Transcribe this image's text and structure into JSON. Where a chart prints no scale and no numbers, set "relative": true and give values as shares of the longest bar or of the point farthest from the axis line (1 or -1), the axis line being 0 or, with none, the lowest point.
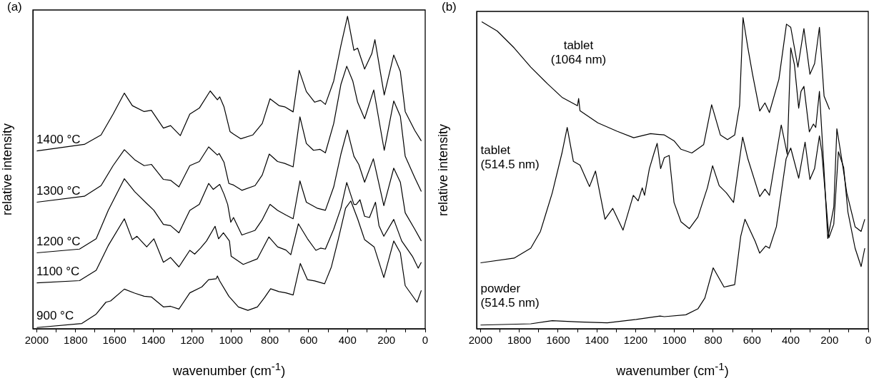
{
  "chart_data": [
    {
      "type": "line",
      "title": "(a)",
      "xlabel": "wavenumber (cm$^{-1}$)",
      "ylabel": "relative intensity",
      "relative": true,
      "marker": "none",
      "legend": false,
      "xlim": [
        2020,
        0
      ],
      "xticks": [
        2000,
        {
          "value": 1900,
          "label": null
        },
        1800,
        {
          "value": 1700,
          "label": null
        },
        1600,
        {
          "value": 1500,
          "label": null
        },
        1400,
        {
          "value": 1300,
          "label": null
        },
        1200,
        {
          "value": 1100,
          "label": null
        },
        1000,
        {
          "value": 900,
          "label": null
        },
        800,
        {
          "value": 700,
          "label": null
        },
        600,
        {
          "value": 500,
          "label": null
        },
        400,
        {
          "value": 300,
          "label": null
        },
        200,
        {
          "value": 100,
          "label": null
        },
        0
      ],
      "series": [
        {
          "name": "1400 °C",
          "color": "#000000",
          "x": [
            2000,
            1755,
            1669,
            1607,
            1549,
            1508,
            1447,
            1410,
            1348,
            1311,
            1261,
            1212,
            1163,
            1107,
            1070,
            1058,
            1036,
            1005,
            987,
            950,
            888,
            839,
            799,
            753,
            723,
            680,
            649,
            612,
            569,
            539,
            514,
            471,
            434,
            400,
            367,
            348,
            312,
            275,
            259,
            211,
            162,
            128,
            103,
            54,
            20
          ],
          "values": [
            0.569,
            0.59,
            0.62,
            0.687,
            0.754,
            0.714,
            0.695,
            0.699,
            0.642,
            0.65,
            0.618,
            0.687,
            0.706,
            0.761,
            0.733,
            0.742,
            0.71,
            0.631,
            0.623,
            0.608,
            0.62,
            0.657,
            0.736,
            0.714,
            0.71,
            0.694,
            0.827,
            0.759,
            0.725,
            0.731,
            0.718,
            0.793,
            0.906,
            1.0,
            0.891,
            0.898,
            0.831,
            0.88,
            0.925,
            0.748,
            0.876,
            0.823,
            0.695,
            0.635,
            0.601
          ]
        },
        {
          "name": "1300 °C",
          "color": "#000000",
          "x": [
            2000,
            1755,
            1669,
            1607,
            1549,
            1496,
            1447,
            1410,
            1348,
            1311,
            1268,
            1212,
            1163,
            1115,
            1070,
            1061,
            1036,
            1011,
            987,
            944,
            876,
            839,
            803,
            760,
            723,
            680,
            645,
            612,
            575,
            541,
            514,
            471,
            434,
            404,
            373,
            348,
            312,
            265,
            211,
            162,
            128,
            103,
            54,
            20
          ],
          "values": [
            0.405,
            0.424,
            0.458,
            0.522,
            0.573,
            0.541,
            0.522,
            0.526,
            0.478,
            0.475,
            0.454,
            0.522,
            0.535,
            0.582,
            0.556,
            0.561,
            0.533,
            0.465,
            0.46,
            0.443,
            0.458,
            0.492,
            0.559,
            0.535,
            0.529,
            0.518,
            0.678,
            0.593,
            0.571,
            0.574,
            0.563,
            0.657,
            0.782,
            0.84,
            0.793,
            0.725,
            0.672,
            0.764,
            0.571,
            0.729,
            0.68,
            0.552,
            0.484,
            0.439
          ]
        },
        {
          "name": "1200 °C",
          "color": "#000000",
          "x": [
            2000,
            1780,
            1694,
            1632,
            1549,
            1496,
            1434,
            1397,
            1348,
            1311,
            1268,
            1212,
            1163,
            1115,
            1091,
            1058,
            1036,
            1017,
            1001,
            987,
            944,
            876,
            839,
            799,
            760,
            717,
            680,
            645,
            612,
            557,
            514,
            471,
            434,
            401,
            367,
            342,
            312,
            267,
            213,
            162,
            128,
            103,
            54,
            20
          ],
          "values": [
            0.243,
            0.255,
            0.288,
            0.379,
            0.48,
            0.439,
            0.401,
            0.379,
            0.334,
            0.33,
            0.307,
            0.379,
            0.398,
            0.465,
            0.446,
            0.462,
            0.431,
            0.398,
            0.341,
            0.356,
            0.3,
            0.315,
            0.349,
            0.398,
            0.379,
            0.364,
            0.352,
            0.473,
            0.405,
            0.386,
            0.379,
            0.454,
            0.559,
            0.636,
            0.552,
            0.526,
            0.469,
            0.544,
            0.394,
            0.514,
            0.469,
            0.371,
            0.319,
            0.281
          ]
        },
        {
          "name": "1100 °C",
          "color": "#000000",
          "x": [
            2000,
            1780,
            1694,
            1632,
            1549,
            1508,
            1484,
            1434,
            1397,
            1348,
            1311,
            1268,
            1212,
            1187,
            1157,
            1126,
            1082,
            1064,
            1039,
            1008,
            999,
            937,
            864,
            805,
            760,
            717,
            692,
            653,
            606,
            563,
            539,
            514,
            471,
            434,
            404,
            367,
            355,
            336,
            312,
            287,
            256,
            238,
            213,
            162,
            121,
            66,
            36,
            20
          ],
          "values": [
            0.147,
            0.154,
            0.187,
            0.266,
            0.352,
            0.285,
            0.296,
            0.262,
            0.288,
            0.213,
            0.228,
            0.198,
            0.251,
            0.239,
            0.258,
            0.281,
            0.328,
            0.288,
            0.307,
            0.281,
            0.232,
            0.206,
            0.224,
            0.294,
            0.262,
            0.252,
            0.237,
            0.336,
            0.288,
            0.251,
            0.258,
            0.255,
            0.319,
            0.386,
            0.468,
            0.398,
            0.398,
            0.413,
            0.36,
            0.356,
            0.405,
            0.33,
            0.296,
            0.35,
            0.281,
            0.232,
            0.194,
            0.213
          ]
        },
        {
          "name": "900 °C",
          "color": "#000000",
          "x": [
            2000,
            1768,
            1694,
            1644,
            1620,
            1549,
            1496,
            1447,
            1410,
            1348,
            1311,
            1268,
            1212,
            1150,
            1115,
            1076,
            1070,
            1058,
            1011,
            962,
            913,
            864,
            827,
            796,
            753,
            717,
            680,
            643,
            606,
            569,
            518,
            483,
            447,
            410,
            383,
            348,
            312,
            263,
            213,
            162,
            128,
            103,
            42,
            20
          ],
          "values": [
            0.004,
            0.017,
            0.047,
            0.085,
            0.089,
            0.127,
            0.114,
            0.104,
            0.102,
            0.07,
            0.072,
            0.063,
            0.115,
            0.134,
            0.157,
            0.16,
            0.169,
            0.153,
            0.104,
            0.07,
            0.059,
            0.07,
            0.1,
            0.128,
            0.119,
            0.115,
            0.108,
            0.209,
            0.157,
            0.153,
            0.144,
            0.198,
            0.288,
            0.386,
            0.409,
            0.352,
            0.285,
            0.262,
            0.164,
            0.281,
            0.243,
            0.138,
            0.085,
            0.123
          ]
        }
      ]
    },
    {
      "type": "line",
      "title": "(b)",
      "xlabel": "wavenumber (cm$^{-1}$)",
      "ylabel": "relative intensity",
      "relative": true,
      "marker": "none",
      "legend": false,
      "xlim": [
        2020,
        0
      ],
      "xticks": [
        2000,
        {
          "value": 1900,
          "label": null
        },
        1800,
        {
          "value": 1700,
          "label": null
        },
        1600,
        {
          "value": 1500,
          "label": null
        },
        1400,
        {
          "value": 1300,
          "label": null
        },
        1200,
        {
          "value": 1100,
          "label": null
        },
        1000,
        {
          "value": 900,
          "label": null
        },
        800,
        {
          "value": 700,
          "label": null
        },
        600,
        {
          "value": 500,
          "label": null
        },
        400,
        {
          "value": 300,
          "label": null
        },
        200,
        {
          "value": 100,
          "label": null
        },
        0
      ],
      "series": [
        {
          "name": "tablet\n(1064 nm)",
          "color": "#000000",
          "x": [
            1994,
            1914,
            1827,
            1741,
            1654,
            1580,
            1500,
            1494,
            1487,
            1395,
            1296,
            1210,
            1123,
            1089,
            1052,
            1002,
            966,
            910,
            849,
            808,
            763,
            726,
            689,
            664,
            646,
            621,
            597,
            560,
            533,
            510,
            461,
            422,
            400,
            363,
            332,
            301,
            277,
            252,
            228,
            200
          ],
          "values": [
            0.987,
            0.957,
            0.903,
            0.841,
            0.787,
            0.744,
            0.717,
            0.74,
            0.701,
            0.662,
            0.635,
            0.614,
            0.627,
            0.625,
            0.623,
            0.604,
            0.577,
            0.565,
            0.592,
            0.72,
            0.623,
            0.608,
            0.623,
            0.717,
            1.0,
            0.903,
            0.818,
            0.7,
            0.726,
            0.695,
            0.802,
            0.979,
            0.969,
            0.841,
            0.965,
            0.818,
            0.852,
            0.969,
            0.748,
            0.705
          ]
        },
        {
          "name": "tablet\n(514.5 nm)",
          "color": "#000000",
          "x": [
            2000,
            1827,
            1741,
            1691,
            1630,
            1580,
            1553,
            1521,
            1487,
            1438,
            1407,
            1358,
            1318,
            1265,
            1212,
            1187,
            1166,
            1154,
            1129,
            1105,
            1089,
            1071,
            1052,
            1027,
            1002,
            966,
            923,
            879,
            830,
            803,
            769,
            732,
            695,
            648,
            621,
            560,
            533,
            510,
            449,
            418,
            400,
            381,
            359,
            347,
            332,
            304,
            283,
            271,
            252,
            230,
            209,
            178,
            162,
            135,
            111,
            68,
            37,
            18
          ],
          "values": [
            0.212,
            0.227,
            0.259,
            0.313,
            0.437,
            0.565,
            0.647,
            0.538,
            0.526,
            0.457,
            0.507,
            0.352,
            0.387,
            0.317,
            0.429,
            0.411,
            0.453,
            0.429,
            0.515,
            0.565,
            0.596,
            0.515,
            0.55,
            0.557,
            0.406,
            0.344,
            0.322,
            0.359,
            0.453,
            0.524,
            0.46,
            0.437,
            0.406,
            0.616,
            0.546,
            0.425,
            0.449,
            0.429,
            0.655,
            0.561,
            0.903,
            0.849,
            0.709,
            0.763,
            0.779,
            0.633,
            0.658,
            0.647,
            0.763,
            0.53,
            0.29,
            0.391,
            0.643,
            0.538,
            0.437,
            0.328,
            0.313,
            0.352
          ]
        },
        {
          "name": "powder\n(514.5 nm)",
          "color": "#000000",
          "x": [
            2000,
            1741,
            1630,
            1494,
            1346,
            1197,
            1074,
            1052,
            941,
            879,
            843,
            800,
            744,
            689,
            658,
            636,
            584,
            560,
            529,
            510,
            474,
            424,
            400,
            359,
            326,
            301,
            277,
            252,
            240,
            203,
            178,
            154,
            127,
            105,
            68,
            37,
            18
          ],
          "values": [
            0.012,
            0.016,
            0.026,
            0.022,
            0.019,
            0.03,
            0.041,
            0.039,
            0.045,
            0.064,
            0.099,
            0.196,
            0.134,
            0.142,
            0.297,
            0.352,
            0.282,
            0.243,
            0.266,
            0.259,
            0.328,
            0.546,
            0.581,
            0.484,
            0.6,
            0.48,
            0.515,
            0.62,
            0.569,
            0.293,
            0.336,
            0.569,
            0.519,
            0.375,
            0.259,
            0.2,
            0.259
          ]
        }
      ]
    }
  ]
}
